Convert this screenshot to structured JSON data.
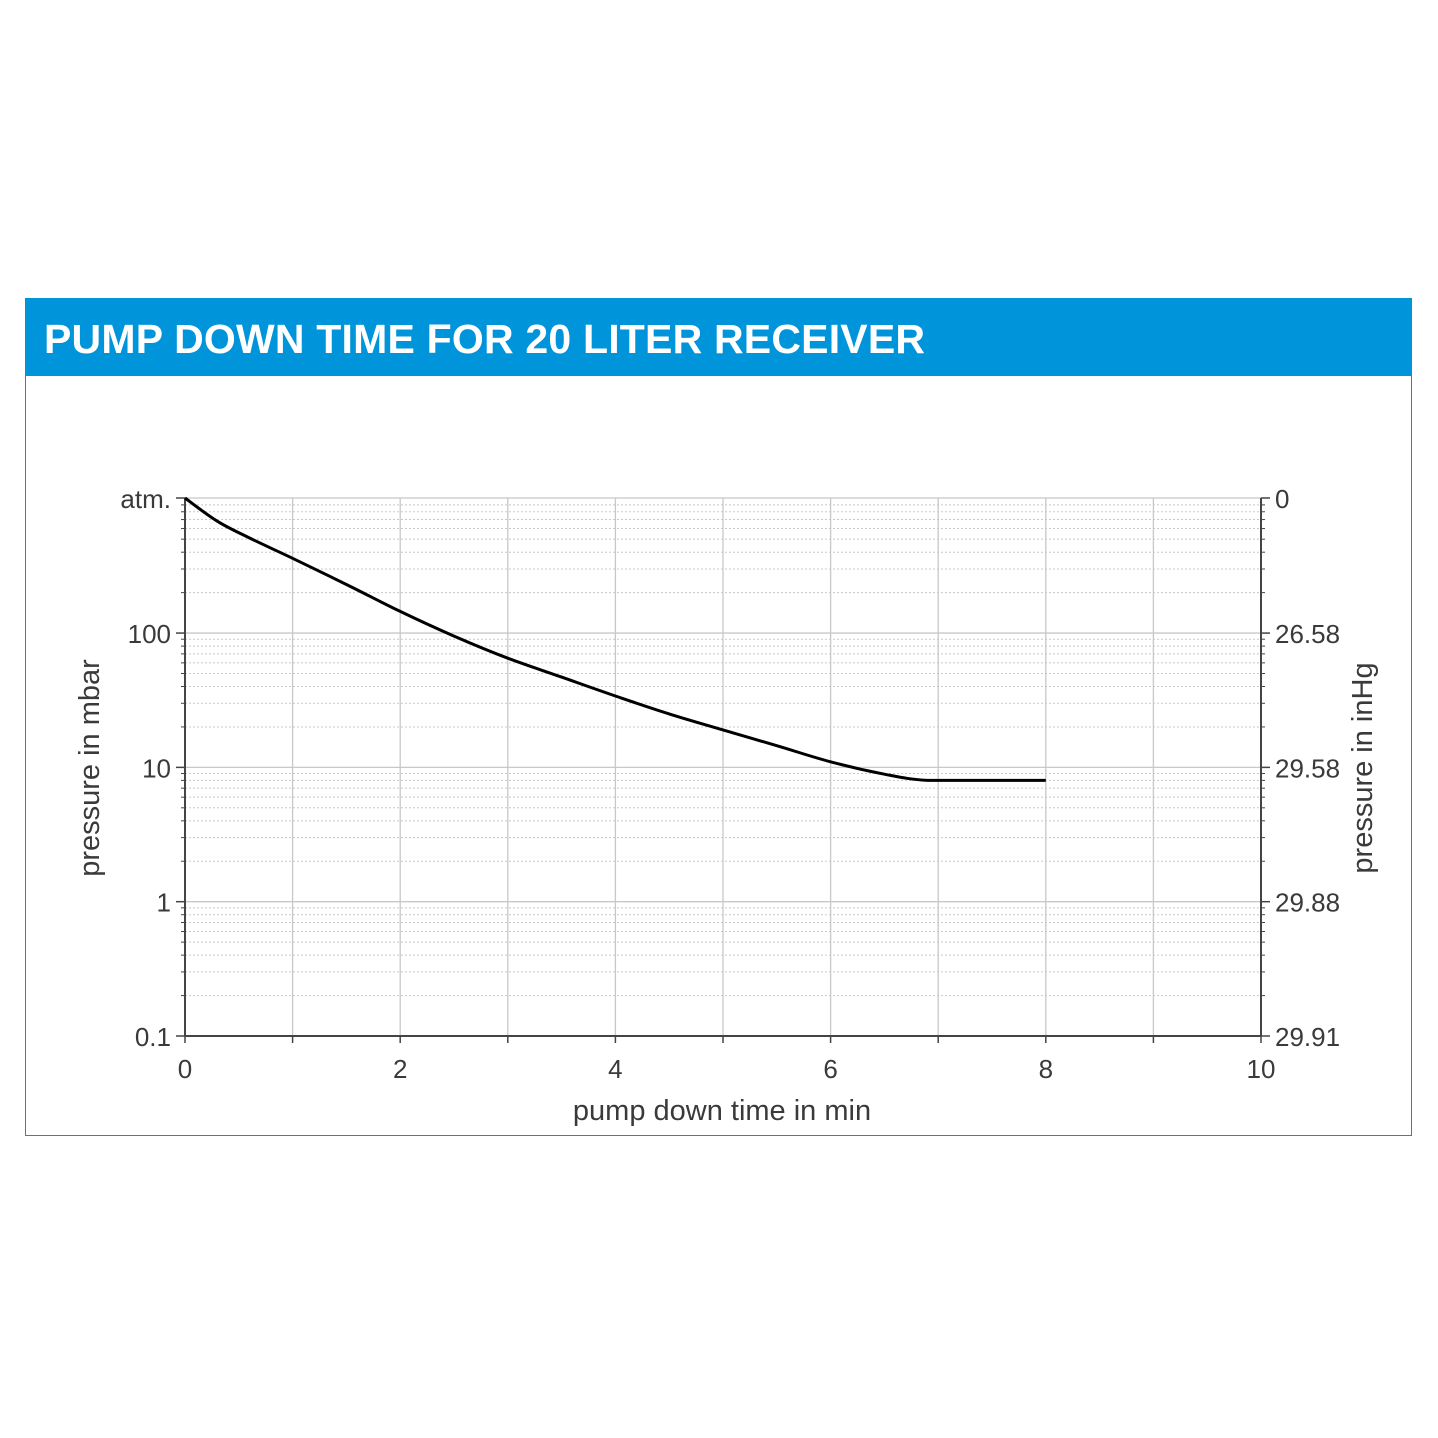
{
  "header": {
    "title": "PUMP DOWN TIME FOR 20 LITER RECEIVER"
  },
  "colors": {
    "banner": "#0095da",
    "border": "#0095da",
    "curve": "#000000",
    "axis": "#444444",
    "grid_major": "#c8c8c8",
    "grid_minor": "#c8c8c8",
    "text": "#3a3a3a"
  },
  "chart_data": {
    "type": "line",
    "xlabel": "pump down time in min",
    "ylabel": "pressure in mbar",
    "ylabel_right": "pressure in inHg",
    "x_scale": "linear",
    "y_scale": "log",
    "xlim": [
      0,
      10
    ],
    "ylim": [
      0.1,
      1013
    ],
    "x_ticks": [
      0,
      2,
      4,
      6,
      8,
      10
    ],
    "x_tick_labels": [
      "0",
      "2",
      "4",
      "6",
      "8",
      "10"
    ],
    "y_ticks": [
      0.1,
      1,
      10,
      100,
      1013
    ],
    "y_tick_labels": [
      "0.1",
      "1",
      "10",
      "100",
      "atm."
    ],
    "y_right_ticks": [
      0.1,
      1,
      10,
      100,
      1013
    ],
    "y_right_tick_labels": [
      "29.91",
      "29.88",
      "29.58",
      "26.58",
      "0"
    ],
    "grid": true,
    "series": [
      {
        "x": [
          0,
          0.3,
          0.6,
          1.0,
          1.5,
          2.0,
          2.5,
          3.0,
          3.5,
          4.0,
          4.5,
          5.0,
          5.5,
          6.0,
          6.5,
          6.9,
          7.5,
          8.0
        ],
        "y": [
          1013,
          680,
          510,
          360,
          230,
          145,
          95,
          65,
          47,
          34,
          25,
          19,
          14.5,
          11,
          8.9,
          8.0,
          8.0,
          8.0
        ]
      }
    ]
  }
}
